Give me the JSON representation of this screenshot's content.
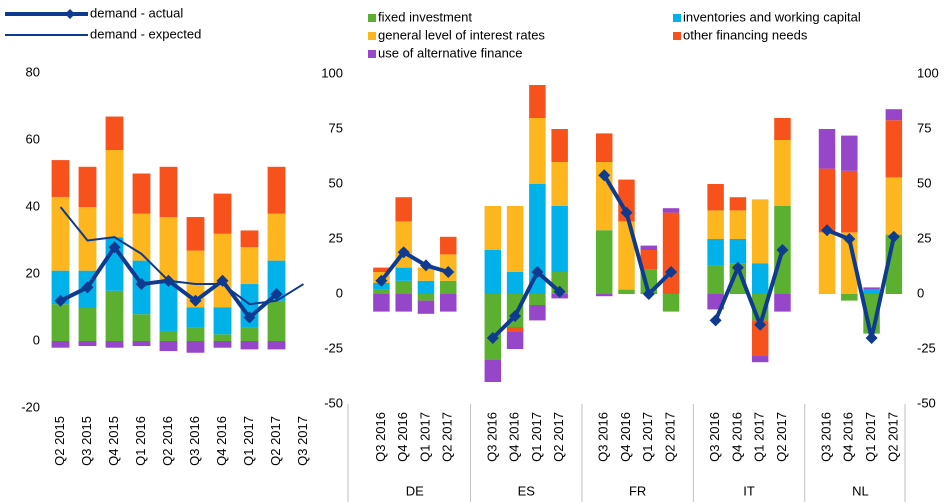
{
  "chart_data": [
    {
      "type": "bar",
      "categories": [
        "Q2 2015",
        "Q3 2015",
        "Q4 2015",
        "Q1 2016",
        "Q2 2016",
        "Q3 2016",
        "Q4 2016",
        "Q1 2017",
        "Q2 2017",
        "Q3 2017"
      ],
      "series": [
        {
          "color": "#5cb030",
          "values": [
            11,
            10,
            15,
            8,
            3,
            4,
            2,
            4,
            12,
            null
          ]
        },
        {
          "color": "#00b1ea",
          "values": [
            10,
            11,
            16,
            16,
            15,
            6,
            8,
            13,
            12,
            null
          ]
        },
        {
          "color": "#fdb61d",
          "values": [
            22,
            19,
            26,
            14,
            19,
            17,
            22,
            11,
            14,
            null
          ]
        },
        {
          "color": "#f8521c",
          "values": [
            11,
            12,
            10,
            12,
            15,
            10,
            12,
            5,
            14,
            null
          ]
        },
        {
          "color": "#9646c8",
          "values": [
            -2,
            -1.5,
            -2,
            -1.5,
            -3,
            -3.5,
            -2,
            -2.5,
            -2.5,
            null
          ]
        }
      ],
      "lines": [
        {
          "name": "demand - actual",
          "color": "#0e3b8f",
          "width": 4,
          "markers": true,
          "values": [
            12,
            16,
            28,
            17,
            18,
            12,
            18,
            7,
            14,
            null
          ]
        },
        {
          "name": "demand - expected",
          "color": "#0e3b8f",
          "width": 2,
          "markers": false,
          "values": [
            40,
            30,
            31,
            26,
            18,
            17,
            17,
            11,
            12,
            17
          ]
        }
      ],
      "ylim": [
        -20,
        80
      ],
      "yticks": [
        -20,
        0,
        20,
        40,
        60,
        80
      ]
    },
    {
      "type": "bar",
      "categories": [
        null,
        "Q3 2016",
        "Q4 2016",
        "Q1 2017",
        "Q2 2017",
        null,
        "Q3 2016",
        "Q4 2016",
        "Q1 2017",
        "Q2 2017",
        null,
        "Q3 2016",
        "Q4 2016",
        "Q1 2017",
        "Q2 2017",
        null,
        "Q3 2016",
        "Q4 2016",
        "Q1 2017",
        "Q2 2017",
        null,
        "Q3 2016",
        "Q4 2016",
        "Q1 2017",
        "Q2 2017"
      ],
      "groups": [
        "DE",
        "ES",
        "FR",
        "IT",
        "NL"
      ],
      "series": [
        {
          "name": "fixed investment",
          "color": "#5cb030",
          "values": [
            null,
            2,
            6,
            -3,
            6,
            null,
            -30,
            -15,
            -5,
            10,
            null,
            29,
            2,
            11,
            -8,
            null,
            13,
            14,
            -12,
            40,
            null,
            0,
            -3,
            -18,
            27
          ]
        },
        {
          "name": "inventories and working capital",
          "color": "#00b1ea",
          "values": [
            null,
            3,
            6,
            6,
            0,
            null,
            20,
            10,
            50,
            30,
            null,
            0,
            0,
            0,
            0,
            null,
            12,
            11,
            14,
            0,
            null,
            0,
            0,
            2,
            0
          ]
        },
        {
          "name": "general level of interest rates",
          "color": "#fdb61d",
          "values": [
            null,
            5,
            21,
            6,
            12,
            null,
            20,
            30,
            30,
            20,
            null,
            31,
            31,
            0,
            0,
            null,
            13,
            13,
            29,
            30,
            null,
            28,
            28,
            0,
            26
          ]
        },
        {
          "name": "other financing needs",
          "color": "#f8521c",
          "values": [
            null,
            2,
            11,
            0,
            8,
            null,
            0,
            -2,
            15,
            15,
            null,
            13,
            19,
            9,
            37,
            null,
            12,
            6,
            -16,
            10,
            null,
            29,
            28,
            0,
            26
          ]
        },
        {
          "name": "use of alternative finance",
          "color": "#9646c8",
          "values": [
            null,
            -8,
            -8,
            -6,
            -8,
            null,
            -10,
            -8,
            -7,
            -2,
            null,
            -1,
            0,
            2,
            2,
            null,
            -7,
            0,
            -3,
            -8,
            null,
            18,
            16,
            1,
            5
          ]
        }
      ],
      "lines": [
        {
          "color": "#0e3b8f",
          "width": 4,
          "markers": true,
          "values": [
            null,
            6,
            19,
            13,
            10,
            null,
            -20,
            -10,
            10,
            1,
            null,
            54,
            37,
            0,
            10,
            null,
            -12,
            12,
            -14,
            20,
            null,
            29,
            25,
            -20,
            26
          ]
        }
      ],
      "ylim": [
        -50,
        100
      ],
      "yticks": [
        -50,
        -25,
        0,
        25,
        50,
        75,
        100
      ],
      "y2lim": [
        -50,
        100
      ],
      "y2ticks": [
        -50,
        -25,
        0,
        25,
        50,
        75,
        100
      ]
    }
  ]
}
